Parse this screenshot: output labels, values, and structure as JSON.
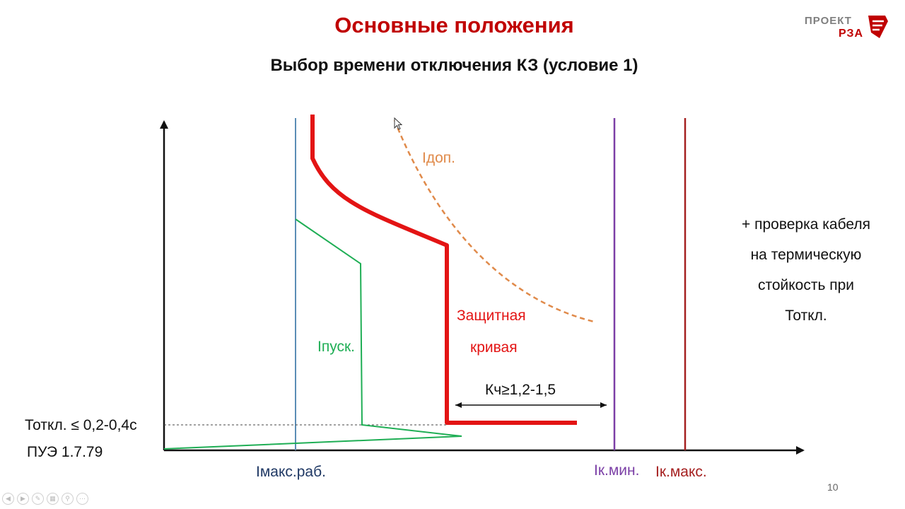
{
  "title": "Основные положения",
  "subtitle": "Выбор времени отключения КЗ (условие 1)",
  "logo": {
    "line1": "ПРОЕКТ",
    "line2": "РЗА"
  },
  "labels": {
    "i_dop": "Iдоп.",
    "i_pusk": "Iпуск.",
    "protective_curve_line1": "Защитная",
    "protective_curve_line2": "кривая",
    "k_ch": "Кч≥1,2-1,5",
    "t_otkl": "Тоткл. ≤ 0,2-0,4с",
    "pue": "ПУЭ 1.7.79",
    "i_maks_rab": "Iмакс.раб.",
    "i_k_min": "Iк.мин.",
    "i_k_maks": "Iк.макс."
  },
  "note": [
    "+ проверка кабеля",
    "на термическую",
    "стойкость при",
    "Тоткл."
  ],
  "page_number": "10",
  "colors": {
    "title": "#c00000",
    "protective_curve": "#e31414",
    "i_dop": "#e08a4a",
    "i_pusk": "#1fae55",
    "i_maks_rab": "#5b8db5",
    "i_k_min": "#7b3fa6",
    "i_k_maks": "#a52020",
    "label_dark_blue": "#1f3864"
  },
  "toolbar_icons": [
    "prev-icon",
    "next-icon",
    "pen-icon",
    "slides-icon",
    "zoom-icon",
    "more-icon"
  ]
}
